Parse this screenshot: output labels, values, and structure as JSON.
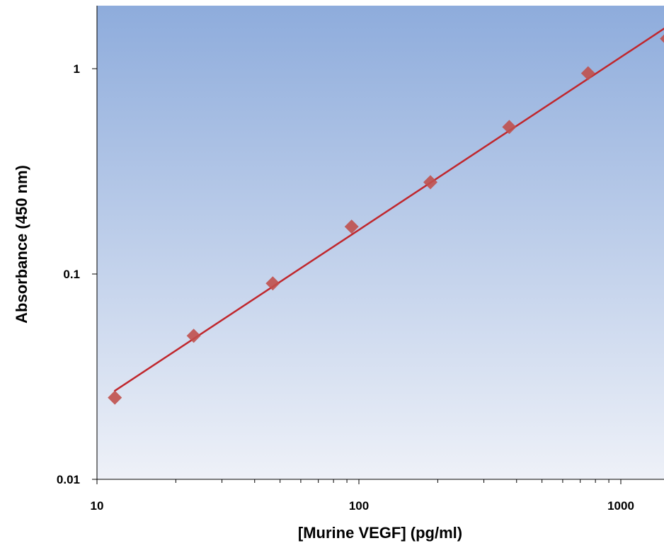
{
  "chart_data": {
    "type": "scatter",
    "xlabel": "[Murine VEGF] (pg/ml)",
    "ylabel": "Absorbance (450 nm)",
    "x_scale": "log",
    "y_scale": "log",
    "xlim": [
      10,
      1500
    ],
    "ylim": [
      0.01,
      2
    ],
    "x_ticks": [
      {
        "value": 10,
        "label": "10"
      },
      {
        "value": 100,
        "label": "100"
      },
      {
        "value": 1000,
        "label": "1000"
      }
    ],
    "y_ticks": [
      {
        "value": 0.01,
        "label": "0.01"
      },
      {
        "value": 0.1,
        "label": "0.1"
      },
      {
        "value": 1,
        "label": "1"
      }
    ],
    "grid": false,
    "legend": "none",
    "series": [
      {
        "marker": "diamond",
        "x": [
          11.7,
          23.4,
          46.9,
          93.8,
          187.5,
          375,
          750,
          1500
        ],
        "y": [
          0.025,
          0.05,
          0.09,
          0.17,
          0.28,
          0.52,
          0.95,
          1.4
        ]
      }
    ],
    "fit_line": {
      "type": "power",
      "x_range": [
        11.7,
        1500
      ],
      "y_range": [
        0.027,
        1.6
      ]
    },
    "colors": {
      "marker": "#c0504d",
      "fit_line": "#c0272d",
      "background_top": "#8eacdc",
      "background_bottom": "#eef1f8"
    }
  }
}
